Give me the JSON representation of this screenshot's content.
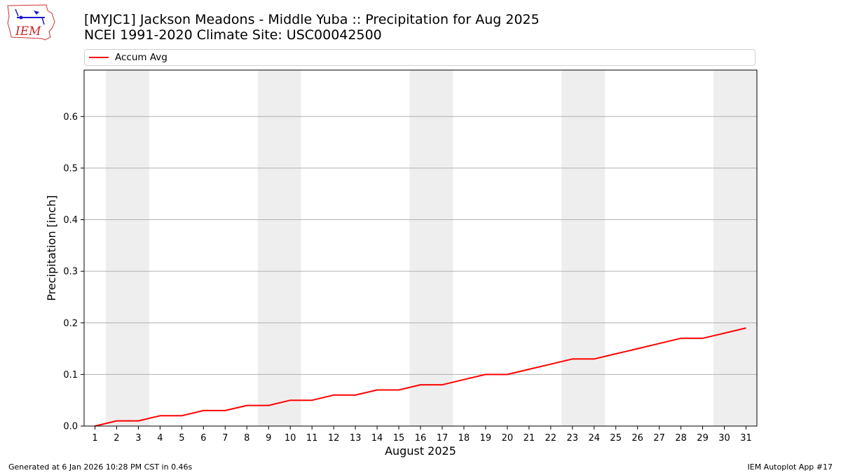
{
  "header": {
    "title_line1": "[MYJC1] Jackson Meadons - Middle Yuba :: Precipitation for Aug 2025",
    "title_line2": "NCEI 1991-2020 Climate Site: USC00042500",
    "logo_text": "IEM"
  },
  "legend": {
    "label": "Accum Avg",
    "color": "#ff0000"
  },
  "footer": {
    "left": "Generated at 6 Jan 2026 10:28 PM CST in 0.46s",
    "right": "IEM Autoplot App #17"
  },
  "chart_data": {
    "type": "line",
    "title": "[MYJC1] Jackson Meadons - Middle Yuba :: Precipitation for Aug 2025",
    "subtitle": "NCEI 1991-2020 Climate Site: USC00042500",
    "xlabel": "August 2025",
    "ylabel": "Precipitation [inch]",
    "xlim": [
      0.5,
      31.5
    ],
    "ylim": [
      0,
      0.69
    ],
    "xticks": [
      1,
      2,
      3,
      4,
      5,
      6,
      7,
      8,
      9,
      10,
      11,
      12,
      13,
      14,
      15,
      16,
      17,
      18,
      19,
      20,
      21,
      22,
      23,
      24,
      25,
      26,
      27,
      28,
      29,
      30,
      31
    ],
    "yticks": [
      0.0,
      0.1,
      0.2,
      0.3,
      0.4,
      0.5,
      0.6
    ],
    "ytick_labels": [
      "0.0",
      "0.1",
      "0.2",
      "0.3",
      "0.4",
      "0.5",
      "0.6"
    ],
    "grid": "horizontal",
    "legend_position": "top",
    "weekend_bands": [
      [
        2,
        3
      ],
      [
        9,
        10
      ],
      [
        16,
        17
      ],
      [
        23,
        24
      ],
      [
        30,
        31
      ]
    ],
    "series": [
      {
        "name": "Accum Avg",
        "color": "#ff0000",
        "x": [
          1,
          2,
          3,
          4,
          5,
          6,
          7,
          8,
          9,
          10,
          11,
          12,
          13,
          14,
          15,
          16,
          17,
          18,
          19,
          20,
          21,
          22,
          23,
          24,
          25,
          26,
          27,
          28,
          29,
          30,
          31
        ],
        "values": [
          0.0,
          0.01,
          0.01,
          0.02,
          0.02,
          0.03,
          0.03,
          0.04,
          0.04,
          0.05,
          0.05,
          0.06,
          0.06,
          0.07,
          0.07,
          0.08,
          0.08,
          0.09,
          0.1,
          0.1,
          0.11,
          0.12,
          0.13,
          0.13,
          0.14,
          0.15,
          0.16,
          0.17,
          0.17,
          0.18,
          0.19
        ]
      }
    ]
  }
}
